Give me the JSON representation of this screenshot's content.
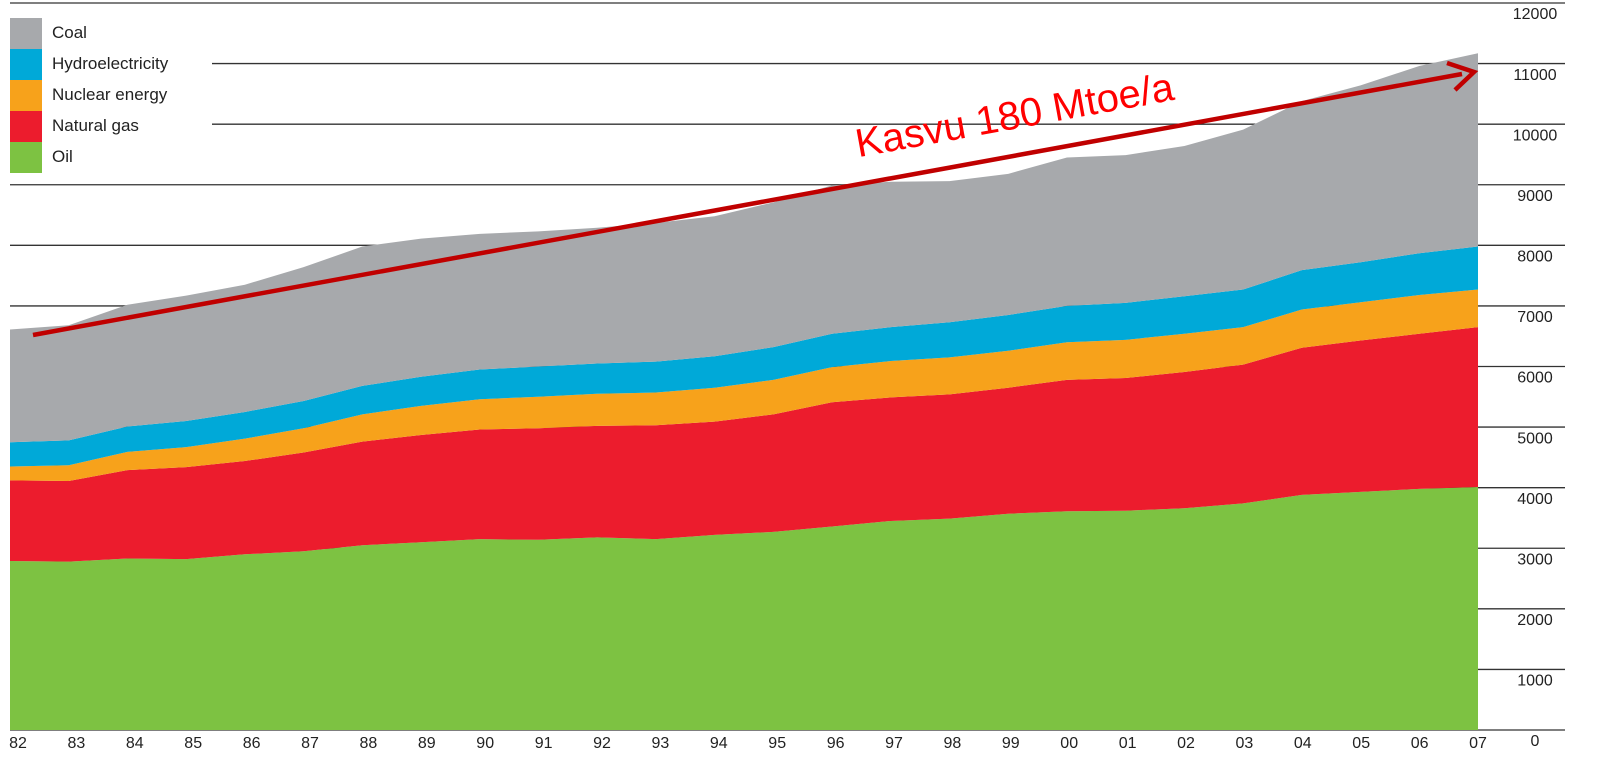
{
  "chart_data": {
    "type": "stacked_area",
    "categories": [
      "82",
      "83",
      "84",
      "85",
      "86",
      "87",
      "88",
      "89",
      "90",
      "91",
      "92",
      "93",
      "94",
      "95",
      "96",
      "97",
      "98",
      "99",
      "00",
      "01",
      "02",
      "03",
      "04",
      "05",
      "06",
      "07"
    ],
    "series": [
      {
        "name": "Oil",
        "color": "#7dc242",
        "values": [
          2790,
          2780,
          2830,
          2820,
          2900,
          2950,
          3050,
          3100,
          3150,
          3140,
          3180,
          3150,
          3220,
          3270,
          3360,
          3450,
          3490,
          3570,
          3610,
          3620,
          3660,
          3740,
          3880,
          3930,
          3980,
          4010
        ]
      },
      {
        "name": "Natural gas",
        "color": "#ec1c2d",
        "values": [
          1330,
          1330,
          1460,
          1520,
          1540,
          1630,
          1710,
          1770,
          1810,
          1840,
          1840,
          1880,
          1870,
          1940,
          2050,
          2040,
          2050,
          2080,
          2170,
          2190,
          2250,
          2290,
          2430,
          2500,
          2560,
          2640
        ]
      },
      {
        "name": "Nuclear energy",
        "color": "#f7a21b",
        "values": [
          230,
          260,
          300,
          330,
          370,
          400,
          450,
          480,
          500,
          520,
          530,
          540,
          560,
          570,
          580,
          600,
          610,
          610,
          620,
          630,
          630,
          620,
          630,
          630,
          640,
          620
        ]
      },
      {
        "name": "Hydroelectricity",
        "color": "#00a9d8",
        "values": [
          400,
          410,
          420,
          430,
          440,
          450,
          470,
          480,
          490,
          500,
          500,
          510,
          520,
          540,
          550,
          560,
          580,
          590,
          600,
          610,
          620,
          620,
          650,
          660,
          690,
          710
        ]
      },
      {
        "name": "Coal",
        "color": "#a7a9ac",
        "values": [
          1860,
          1900,
          2010,
          2070,
          2100,
          2210,
          2300,
          2280,
          2240,
          2230,
          2240,
          2290,
          2310,
          2390,
          2450,
          2400,
          2330,
          2330,
          2450,
          2440,
          2480,
          2640,
          2790,
          2920,
          3090,
          3190
        ]
      }
    ],
    "ylim": [
      0,
      12000
    ],
    "yticks": [
      0,
      1000,
      2000,
      3000,
      4000,
      5000,
      6000,
      7000,
      8000,
      9000,
      10000,
      11000,
      12000
    ],
    "grid": true,
    "legend": "upper left",
    "annotation": "Kasvu 180 Mtoe/a"
  }
}
